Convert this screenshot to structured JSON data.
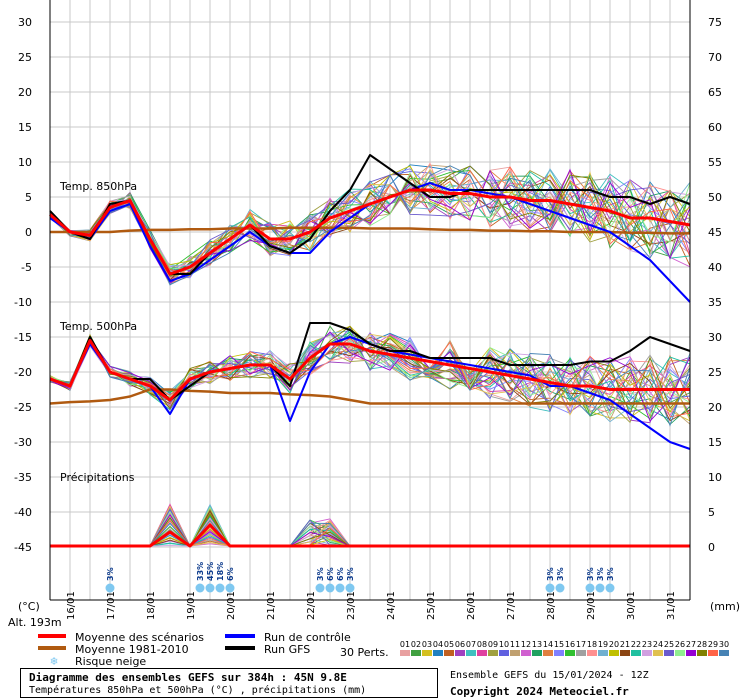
{
  "chart_data": {
    "type": "line",
    "title": "Diagramme des ensembles GEFS sur 384h : 45N 9.8E",
    "subtitle": "Températures 850hPa et 500hPa (°C) , précipitations (mm)",
    "source_run": "Ensemble GEFS du 15/01/2024 - 12Z",
    "copyright": "Copyright 2024 Meteociel.fr",
    "altitude": "Alt. 193m",
    "left_axis_unit": "(°C)",
    "right_axis_unit": "(mm)",
    "left_axis_ticks": [
      "30",
      "25",
      "20",
      "15",
      "10",
      "5",
      "0",
      "-5",
      "-10",
      "-15",
      "-20",
      "-25",
      "-30",
      "-35",
      "-40",
      "-45"
    ],
    "right_axis_ticks": [
      "75",
      "70",
      "65",
      "60",
      "55",
      "50",
      "45",
      "40",
      "35",
      "30",
      "25",
      "20",
      "15",
      "10",
      "5",
      "0"
    ],
    "date_labels": [
      "16/01",
      "17/01",
      "18/01",
      "19/01",
      "20/01",
      "21/01",
      "22/01",
      "23/01",
      "24/01",
      "25/01",
      "26/01",
      "27/01",
      "28/01",
      "29/01",
      "30/01",
      "31/01"
    ],
    "ylim_temp": [
      -45,
      30
    ],
    "ylim_precip_mm": [
      0,
      75
    ],
    "x_range_hours": [
      0,
      384
    ],
    "time_step_hours": 12,
    "grid": true,
    "sections": {
      "t850": "Temp. 850hPa",
      "t500": "Temp. 500hPa",
      "precip": "Précipitations"
    },
    "legend": {
      "mean": "Moyenne des scénarios",
      "clim": "Moyenne 1981-2010",
      "snow": "Risque neige",
      "control": "Run de contrôle",
      "gfs": "Run GFS",
      "members_label": "30 Perts.",
      "member_numbers": [
        "01",
        "02",
        "03",
        "04",
        "05",
        "06",
        "07",
        "08",
        "09",
        "10",
        "11",
        "12",
        "13",
        "14",
        "15",
        "16",
        "17",
        "18",
        "19",
        "20",
        "21",
        "22",
        "23",
        "24",
        "25",
        "26",
        "27",
        "28",
        "29",
        "30"
      ]
    },
    "colors": {
      "mean": "#ff0000",
      "clim": "#b05a10",
      "control": "#0000ff",
      "gfs": "#000000",
      "snow": "#7fc8f0",
      "members": [
        "#e8a0a0",
        "#40a040",
        "#d4c020",
        "#2080c0",
        "#c06020",
        "#a040c0",
        "#40c0c0",
        "#e040a0",
        "#a0a040",
        "#6060e0",
        "#c0a070",
        "#d060d0",
        "#20a060",
        "#e08040",
        "#8080ff",
        "#30c030",
        "#a0a0a0",
        "#ff9090",
        "#70b0d0",
        "#c0c000",
        "#8b4513",
        "#20c0a0",
        "#d0a0e0",
        "#e0c050",
        "#6a5acd",
        "#90ee90",
        "#9400d3",
        "#808000",
        "#ff6347",
        "#4682b4"
      ]
    },
    "series": [
      {
        "name": "Moyenne des scénarios",
        "level": "850hPa",
        "values": [
          2.5,
          0,
          -0.5,
          3.5,
          4.5,
          -1,
          -6,
          -5,
          -3,
          -1,
          1,
          -1,
          -1,
          0,
          2,
          3,
          4,
          5,
          6,
          6,
          5.5,
          5.5,
          5,
          5,
          4.5,
          4.5,
          4,
          3.5,
          3,
          2,
          2,
          1.5,
          1
        ]
      },
      {
        "name": "Moyenne 1981-2010",
        "level": "850hPa",
        "values": [
          0,
          0,
          0,
          0,
          0.2,
          0.3,
          0.3,
          0.4,
          0.4,
          0.5,
          0.5,
          0.5,
          0.6,
          0.6,
          0.6,
          0.6,
          0.5,
          0.5,
          0.5,
          0.4,
          0.3,
          0.3,
          0.2,
          0.2,
          0.1,
          0.1,
          0,
          0,
          0,
          -0.1,
          -0.1,
          -0.2,
          -0.2
        ]
      },
      {
        "name": "Run de contrôle",
        "level": "850hPa",
        "values": [
          2,
          0,
          -1,
          3,
          4,
          -2,
          -7,
          -6,
          -4,
          -2,
          0,
          -2,
          -3,
          -3,
          0,
          2,
          4,
          5,
          6,
          7,
          6,
          6,
          5.5,
          5,
          4,
          3,
          2,
          1,
          0,
          -2,
          -4,
          -7,
          -10
        ]
      },
      {
        "name": "Run GFS",
        "level": "850hPa",
        "values": [
          3,
          0,
          -1,
          4,
          4.5,
          -1,
          -6,
          -6,
          -3,
          -1,
          1,
          -2,
          -3,
          -1,
          3,
          6,
          11,
          9,
          7,
          5,
          5,
          6,
          6,
          6,
          6,
          6,
          6,
          6,
          5,
          5,
          4,
          5,
          4
        ]
      },
      {
        "name": "Moyenne des scénarios",
        "level": "500hPa",
        "values": [
          -21,
          -22,
          -15.5,
          -20,
          -21,
          -22,
          -24,
          -21,
          -20,
          -19.5,
          -19,
          -19,
          -21,
          -18,
          -16,
          -16,
          -17,
          -17.5,
          -18,
          -18.5,
          -19,
          -19.5,
          -20,
          -20.5,
          -21,
          -21.5,
          -22,
          -22,
          -22.5,
          -22.5,
          -22.5,
          -22.5,
          -22.5
        ]
      },
      {
        "name": "Moyenne 1981-2010",
        "level": "500hPa",
        "values": [
          -24.5,
          -24.3,
          -24.2,
          -24,
          -23.5,
          -22.5,
          -22.5,
          -22.7,
          -22.8,
          -23,
          -23,
          -23,
          -23.2,
          -23.3,
          -23.5,
          -24,
          -24.5,
          -24.5,
          -24.5,
          -24.5,
          -24.5,
          -24.5,
          -24.5,
          -24.5,
          -24.5,
          -24.5,
          -24.5,
          -24.5,
          -24.5,
          -24.5,
          -24.5,
          -24.5,
          -24.5
        ]
      },
      {
        "name": "Run de contrôle",
        "level": "500hPa",
        "values": [
          -21,
          -22,
          -16,
          -20,
          -21,
          -22,
          -26,
          -21,
          -20,
          -19.5,
          -19,
          -19,
          -27,
          -20,
          -16,
          -15,
          -16,
          -17,
          -17.5,
          -18,
          -18.5,
          -19,
          -19.5,
          -20,
          -20.5,
          -22,
          -22,
          -23,
          -24,
          -26,
          -28,
          -30,
          -31
        ]
      },
      {
        "name": "Run GFS",
        "level": "500hPa",
        "values": [
          -21,
          -22,
          -15,
          -20,
          -21,
          -21,
          -24,
          -22,
          -20,
          -19.5,
          -19,
          -19,
          -22,
          -13,
          -13,
          -14,
          -16,
          -17,
          -17,
          -18,
          -18,
          -18,
          -18,
          -19,
          -19,
          -19,
          -19,
          -18.5,
          -18.5,
          -17,
          -15,
          -16,
          -17
        ]
      },
      {
        "name": "Moyenne des scénarios",
        "level": "precip_mm",
        "values": [
          0,
          0,
          0,
          0,
          0,
          0,
          2,
          0,
          3,
          0,
          0,
          0,
          0,
          0,
          0,
          0,
          0,
          0,
          0,
          0,
          0,
          0,
          0,
          0,
          0,
          0,
          0,
          0,
          0,
          0,
          0,
          0,
          0
        ]
      }
    ],
    "snow_risk_labels": [
      "3%",
      "33%",
      "45%",
      "18%",
      "6%",
      "3%",
      "6%",
      "6%",
      "3%",
      "3%",
      "3%",
      "3%",
      "3%",
      "3%"
    ]
  }
}
